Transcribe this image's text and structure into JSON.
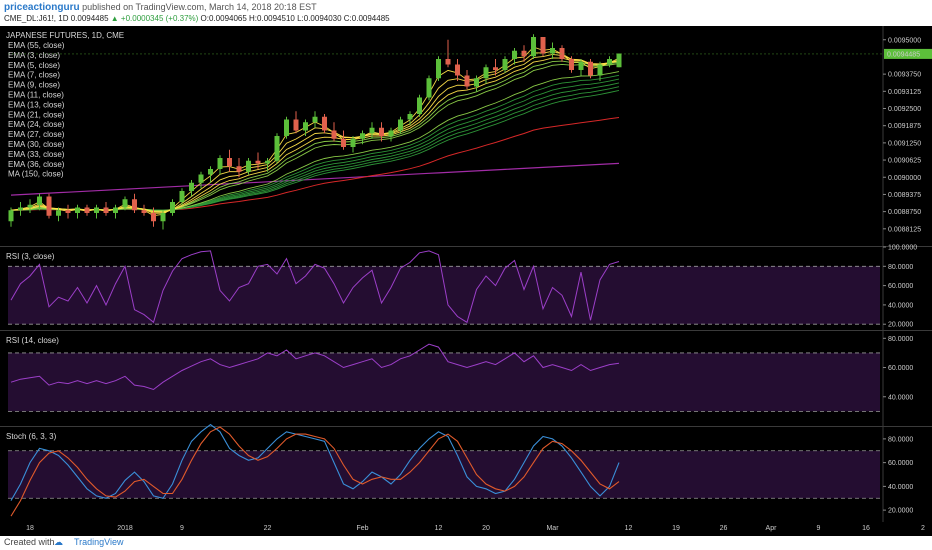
{
  "header": {
    "author": "priceactionguru",
    "published": "published on TradingView.com, March 14, 2018 20:18 EST",
    "symbol": "CME_DL:J61!, 1D",
    "last": "0.0094485",
    "change": "▲ +0.0000345 (+0.37%)",
    "ohlc": "O:0.0094065 H:0.0094510 L:0.0094030 C:0.0094485"
  },
  "footer": {
    "created": "Created with",
    "logo": "☁",
    "brand": "TradingView"
  },
  "colors": {
    "up": "#5cbf3a",
    "down": "#e0614d",
    "ema_fast": "#ffe24a",
    "ema_mid": "#8fd34a",
    "ema_slow": "#2f9a3a",
    "ema55": "#d62828",
    "ma150": "#a12ca6",
    "osc": "#9c3fc9",
    "stoch_k": "#3a8fd8",
    "stoch_d": "#e05a2b"
  },
  "chart_data": [
    {
      "type": "candlestick",
      "title": "JAPANESE FUTURES, 1D, CME",
      "legend": [
        "EMA (55, close)",
        "EMA (3, close)",
        "EMA (5, close)",
        "EMA (7, close)",
        "EMA (9, close)",
        "EMA (11, close)",
        "EMA (13, close)",
        "EMA (21, close)",
        "EMA (24, close)",
        "EMA (27, close)",
        "EMA (30, close)",
        "EMA (33, close)",
        "EMA (36, close)",
        "MA (150, close)"
      ],
      "ylim": [
        0.00875,
        0.00955
      ],
      "y_ticks": [
        "0.0095000",
        "0.0093750",
        "0.0093125",
        "0.0092500",
        "0.0091875",
        "0.0091250",
        "0.0090625",
        "0.0090000",
        "0.0089375",
        "0.0088750",
        "0.0088125"
      ],
      "y_tick_values": [
        0.0095,
        0.009375,
        0.0093125,
        0.00925,
        0.0091875,
        0.009125,
        0.0090625,
        0.009,
        0.0089375,
        0.008875,
        0.0088125
      ],
      "last_price_label": "0.0094485",
      "last_price": 0.0094485,
      "x_ticks": [
        "18",
        "2018",
        "9",
        "22",
        "Feb",
        "12",
        "20",
        "Mar",
        "12",
        "19",
        "26",
        "Apr",
        "9",
        "16",
        "2"
      ],
      "x_tick_index": [
        2,
        12,
        18,
        27,
        37,
        45,
        50,
        57,
        65,
        70,
        75,
        80,
        85,
        90,
        96
      ],
      "candles": [
        [
          0.00884,
          0.00889,
          0.00882,
          0.00888
        ],
        [
          0.00888,
          0.00891,
          0.00886,
          0.00889
        ],
        [
          0.00889,
          0.00892,
          0.00887,
          0.0089
        ],
        [
          0.0089,
          0.00894,
          0.00888,
          0.00893
        ],
        [
          0.00893,
          0.00894,
          0.00885,
          0.00886
        ],
        [
          0.00886,
          0.00889,
          0.00884,
          0.00888
        ],
        [
          0.00888,
          0.0089,
          0.00885,
          0.00887
        ],
        [
          0.00887,
          0.0089,
          0.00885,
          0.00889
        ],
        [
          0.00889,
          0.0089,
          0.00886,
          0.00887
        ],
        [
          0.00887,
          0.0089,
          0.00885,
          0.00889
        ],
        [
          0.00889,
          0.00891,
          0.00886,
          0.00887
        ],
        [
          0.00887,
          0.0089,
          0.00885,
          0.00889
        ],
        [
          0.00889,
          0.00893,
          0.00888,
          0.00892
        ],
        [
          0.00892,
          0.00894,
          0.00887,
          0.00888
        ],
        [
          0.00888,
          0.0089,
          0.00886,
          0.00887
        ],
        [
          0.00887,
          0.00889,
          0.00882,
          0.00884
        ],
        [
          0.00884,
          0.00888,
          0.00881,
          0.00887
        ],
        [
          0.00887,
          0.00892,
          0.00886,
          0.00891
        ],
        [
          0.00891,
          0.00896,
          0.0089,
          0.00895
        ],
        [
          0.00895,
          0.00899,
          0.00893,
          0.00898
        ],
        [
          0.00898,
          0.00902,
          0.00896,
          0.00901
        ],
        [
          0.00901,
          0.00904,
          0.00898,
          0.00903
        ],
        [
          0.00903,
          0.00908,
          0.00901,
          0.00907
        ],
        [
          0.00907,
          0.0091,
          0.00902,
          0.00904
        ],
        [
          0.00904,
          0.00907,
          0.009,
          0.00902
        ],
        [
          0.00902,
          0.00907,
          0.00901,
          0.00906
        ],
        [
          0.00906,
          0.00909,
          0.00903,
          0.00905
        ],
        [
          0.00905,
          0.00907,
          0.00902,
          0.00906
        ],
        [
          0.00906,
          0.00916,
          0.00905,
          0.00915
        ],
        [
          0.00915,
          0.00922,
          0.00914,
          0.00921
        ],
        [
          0.00921,
          0.00924,
          0.00916,
          0.00917
        ],
        [
          0.00917,
          0.00921,
          0.00915,
          0.0092
        ],
        [
          0.0092,
          0.00924,
          0.00918,
          0.00922
        ],
        [
          0.00922,
          0.00923,
          0.00916,
          0.00917
        ],
        [
          0.00917,
          0.0092,
          0.00913,
          0.00914
        ],
        [
          0.00914,
          0.00917,
          0.0091,
          0.00911
        ],
        [
          0.00911,
          0.00915,
          0.00909,
          0.00914
        ],
        [
          0.00914,
          0.00917,
          0.00912,
          0.00916
        ],
        [
          0.00916,
          0.0092,
          0.00914,
          0.00918
        ],
        [
          0.00918,
          0.0092,
          0.00913,
          0.00915
        ],
        [
          0.00915,
          0.00918,
          0.00913,
          0.00917
        ],
        [
          0.00917,
          0.00922,
          0.00916,
          0.00921
        ],
        [
          0.00921,
          0.00924,
          0.00919,
          0.00923
        ],
        [
          0.00923,
          0.0093,
          0.00922,
          0.00929
        ],
        [
          0.00929,
          0.00937,
          0.00928,
          0.00936
        ],
        [
          0.00936,
          0.00944,
          0.00935,
          0.00943
        ],
        [
          0.00943,
          0.0095,
          0.0094,
          0.00941
        ],
        [
          0.00941,
          0.00943,
          0.00935,
          0.00937
        ],
        [
          0.00937,
          0.00939,
          0.00932,
          0.00933
        ],
        [
          0.00933,
          0.00937,
          0.00931,
          0.00936
        ],
        [
          0.00936,
          0.00941,
          0.00934,
          0.0094
        ],
        [
          0.0094,
          0.00943,
          0.00937,
          0.00939
        ],
        [
          0.00939,
          0.00944,
          0.00938,
          0.00943
        ],
        [
          0.00943,
          0.00947,
          0.00941,
          0.00946
        ],
        [
          0.00946,
          0.00948,
          0.00942,
          0.00944
        ],
        [
          0.00944,
          0.00952,
          0.00943,
          0.00951
        ],
        [
          0.00951,
          0.00951,
          0.00944,
          0.00945
        ],
        [
          0.00945,
          0.00949,
          0.00943,
          0.00947
        ],
        [
          0.00947,
          0.00948,
          0.00942,
          0.00943
        ],
        [
          0.00943,
          0.00944,
          0.00938,
          0.00939
        ],
        [
          0.00939,
          0.00943,
          0.00937,
          0.00942
        ],
        [
          0.00942,
          0.00943,
          0.00936,
          0.00937
        ],
        [
          0.00937,
          0.00942,
          0.00935,
          0.00941
        ],
        [
          0.00941,
          0.00944,
          0.0094,
          0.00943
        ],
        [
          0.0094,
          0.00945,
          0.0094,
          0.00945
        ]
      ]
    },
    {
      "type": "line",
      "title": "RSI (3, close)",
      "ylim": [
        14,
        100
      ],
      "y_ticks": [
        "100.0000",
        "80.0000",
        "60.0000",
        "40.0000",
        "20.0000"
      ],
      "y_tick_values": [
        100,
        80,
        60,
        40,
        20
      ],
      "bands": [
        80,
        20
      ],
      "values": [
        45,
        62,
        70,
        82,
        38,
        48,
        44,
        58,
        42,
        60,
        40,
        62,
        80,
        35,
        30,
        22,
        55,
        75,
        88,
        92,
        95,
        96,
        55,
        44,
        58,
        62,
        80,
        82,
        72,
        88,
        62,
        70,
        82,
        78,
        62,
        42,
        58,
        68,
        76,
        42,
        58,
        78,
        84,
        94,
        96,
        92,
        40,
        28,
        22,
        56,
        70,
        60,
        78,
        86,
        56,
        80,
        36,
        58,
        50,
        28,
        74,
        24,
        66,
        82,
        85
      ]
    },
    {
      "type": "line",
      "title": "RSI (14, close)",
      "ylim": [
        20,
        85
      ],
      "y_ticks": [
        "80.0000",
        "60.0000",
        "40.0000"
      ],
      "y_tick_values": [
        80,
        60,
        40
      ],
      "bands": [
        70,
        30
      ],
      "values": [
        50,
        52,
        53,
        54,
        48,
        50,
        49,
        51,
        49,
        51,
        49,
        51,
        54,
        48,
        47,
        45,
        50,
        54,
        58,
        61,
        64,
        66,
        62,
        60,
        62,
        64,
        66,
        70,
        68,
        72,
        66,
        68,
        70,
        68,
        64,
        60,
        62,
        64,
        66,
        60,
        62,
        66,
        68,
        72,
        76,
        74,
        64,
        62,
        60,
        62,
        64,
        62,
        66,
        70,
        64,
        68,
        60,
        62,
        60,
        58,
        62,
        58,
        60,
        62,
        63
      ]
    },
    {
      "type": "line",
      "title": "Stoch (6, 3, 3)",
      "ylim": [
        10,
        90
      ],
      "y_ticks": [
        "80.0000",
        "60.0000",
        "40.0000",
        "20.0000"
      ],
      "y_tick_values": [
        80,
        60,
        40,
        20
      ],
      "bands": [
        70,
        30
      ],
      "series": [
        {
          "name": "Stoch",
          "values": [
            28,
            42,
            60,
            72,
            70,
            66,
            58,
            48,
            38,
            32,
            30,
            34,
            45,
            52,
            44,
            32,
            30,
            42,
            62,
            78,
            86,
            92,
            86,
            72,
            66,
            62,
            64,
            72,
            80,
            86,
            84,
            82,
            80,
            78,
            60,
            42,
            38,
            44,
            52,
            48,
            42,
            50,
            62,
            72,
            80,
            86,
            82,
            66,
            48,
            40,
            38,
            34,
            36,
            46,
            60,
            74,
            82,
            80,
            74,
            64,
            52,
            40,
            32,
            40,
            60
          ]
        },
        {
          "name": "",
          "values": [
            15,
            28,
            45,
            60,
            68,
            70,
            64,
            56,
            46,
            38,
            32,
            31,
            36,
            44,
            46,
            40,
            34,
            34,
            46,
            62,
            76,
            86,
            90,
            84,
            74,
            66,
            62,
            65,
            72,
            80,
            84,
            84,
            82,
            80,
            72,
            58,
            46,
            42,
            46,
            48,
            46,
            46,
            52,
            60,
            70,
            80,
            84,
            78,
            64,
            50,
            42,
            38,
            36,
            40,
            48,
            60,
            72,
            78,
            76,
            70,
            62,
            52,
            42,
            38,
            44
          ]
        }
      ]
    }
  ]
}
